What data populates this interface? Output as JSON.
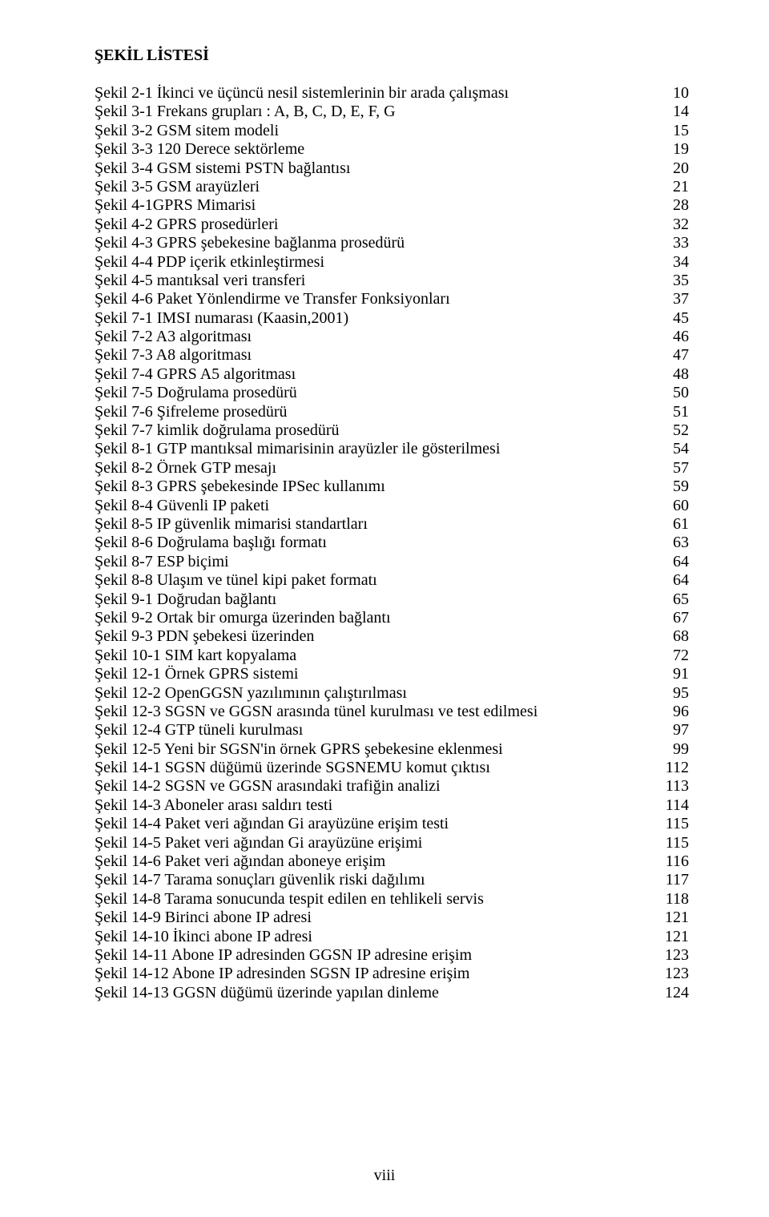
{
  "heading": "ŞEKİL LİSTESİ",
  "page_number": "viii",
  "items": [
    {
      "label": "Şekil 2-1 İkinci ve üçüncü nesil sistemlerinin bir arada çalışması",
      "page": "10"
    },
    {
      "label": "Şekil 3-1 Frekans grupları : A, B, C, D, E, F, G",
      "page": "14"
    },
    {
      "label": "Şekil 3-2 GSM sitem modeli",
      "page": "15"
    },
    {
      "label": "Şekil 3-3 120 Derece sektörleme",
      "page": "19"
    },
    {
      "label": "Şekil 3-4 GSM sistemi PSTN bağlantısı",
      "page": "20"
    },
    {
      "label": "Şekil 3-5 GSM arayüzleri",
      "page": "21"
    },
    {
      "label": "Şekil 4-1GPRS Mimarisi",
      "page": "28"
    },
    {
      "label": "Şekil 4-2 GPRS prosedürleri",
      "page": "32"
    },
    {
      "label": "Şekil 4-3 GPRS şebekesine bağlanma prosedürü",
      "page": "33"
    },
    {
      "label": "Şekil 4-4 PDP içerik etkinleştirmesi",
      "page": "34"
    },
    {
      "label": "Şekil 4-5 mantıksal veri transferi",
      "page": "35"
    },
    {
      "label": "Şekil 4-6 Paket Yönlendirme ve Transfer Fonksiyonları",
      "page": "37"
    },
    {
      "label": "Şekil 7-1 IMSI numarası (Kaasin,2001)",
      "page": "45"
    },
    {
      "label": "Şekil 7-2 A3 algoritması",
      "page": "46"
    },
    {
      "label": "Şekil 7-3 A8 algoritması",
      "page": "47"
    },
    {
      "label": "Şekil 7-4 GPRS A5 algoritması",
      "page": "48"
    },
    {
      "label": "Şekil 7-5 Doğrulama prosedürü",
      "page": "50"
    },
    {
      "label": "Şekil 7-6 Şifreleme prosedürü",
      "page": "51"
    },
    {
      "label": "Şekil 7-7 kimlik doğrulama prosedürü",
      "page": "52"
    },
    {
      "label": "Şekil 8-1 GTP mantıksal mimarisinin arayüzler ile gösterilmesi",
      "page": "54"
    },
    {
      "label": "Şekil 8-2 Örnek GTP mesajı",
      "page": "57"
    },
    {
      "label": "Şekil 8-3 GPRS şebekesinde IPSec kullanımı",
      "page": "59"
    },
    {
      "label": "Şekil 8-4 Güvenli IP paketi",
      "page": "60"
    },
    {
      "label": "Şekil 8-5 IP güvenlik mimarisi standartları",
      "page": "61"
    },
    {
      "label": "Şekil 8-6 Doğrulama başlığı formatı",
      "page": "63"
    },
    {
      "label": "Şekil 8-7 ESP biçimi",
      "page": "64"
    },
    {
      "label": "Şekil 8-8 Ulaşım ve tünel kipi paket formatı",
      "page": "64"
    },
    {
      "label": "Şekil 9-1 Doğrudan bağlantı",
      "page": "65"
    },
    {
      "label": "Şekil 9-2 Ortak bir omurga üzerinden bağlantı",
      "page": "67"
    },
    {
      "label": "Şekil 9-3 PDN şebekesi üzerinden",
      "page": "68"
    },
    {
      "label": "Şekil 10-1 SIM kart kopyalama",
      "page": "72"
    },
    {
      "label": "Şekil 12-1 Örnek GPRS sistemi",
      "page": "91"
    },
    {
      "label": "Şekil 12-2 OpenGGSN yazılımının çalıştırılması",
      "page": "95"
    },
    {
      "label": "Şekil 12-3 SGSN ve GGSN arasında tünel kurulması ve test edilmesi",
      "page": "96"
    },
    {
      "label": "Şekil 12-4 GTP tüneli kurulması",
      "page": "97"
    },
    {
      "label": "Şekil 12-5 Yeni bir SGSN'in örnek GPRS şebekesine eklenmesi",
      "page": "99"
    },
    {
      "label": "Şekil 14-1 SGSN düğümü üzerinde SGSNEMU komut çıktısı",
      "page": "112"
    },
    {
      "label": "Şekil 14-2 SGSN ve GGSN arasındaki trafiğin analizi",
      "page": "113"
    },
    {
      "label": "Şekil 14-3 Aboneler arası saldırı testi",
      "page": "114"
    },
    {
      "label": "Şekil 14-4 Paket veri ağından Gi arayüzüne erişim testi",
      "page": "115"
    },
    {
      "label": "Şekil 14-5 Paket veri ağından Gi arayüzüne erişimi",
      "page": "115"
    },
    {
      "label": "Şekil 14-6 Paket veri ağından aboneye erişim",
      "page": "116"
    },
    {
      "label": "Şekil 14-7 Tarama sonuçları güvenlik riski dağılımı",
      "page": "117"
    },
    {
      "label": "Şekil 14-8 Tarama sonucunda tespit edilen en tehlikeli servis",
      "page": "118"
    },
    {
      "label": "Şekil 14-9 Birinci abone IP adresi",
      "page": "121"
    },
    {
      "label": "Şekil 14-10 İkinci abone IP adresi",
      "page": "121"
    },
    {
      "label": "Şekil 14-11 Abone IP adresinden GGSN IP adresine erişim",
      "page": "123"
    },
    {
      "label": "Şekil 14-12 Abone IP adresinden SGSN IP adresine erişim",
      "page": "123"
    },
    {
      "label": "Şekil 14-13 GGSN düğümü üzerinde yapılan dinleme",
      "page": "124"
    }
  ]
}
